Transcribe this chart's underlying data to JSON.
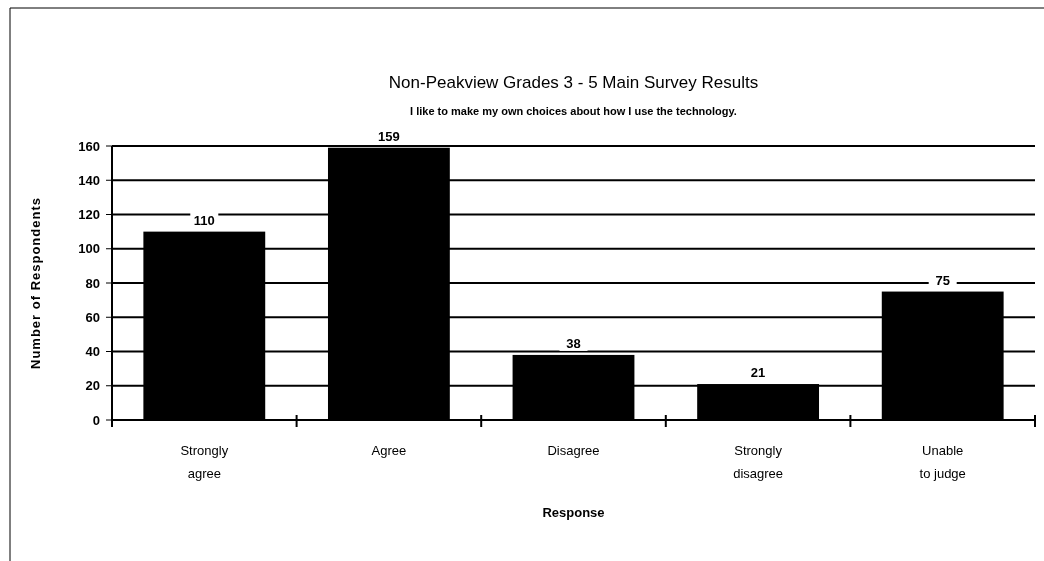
{
  "chart_data": {
    "type": "bar",
    "title": "Non-Peakview Grades 3 - 5 Main Survey Results",
    "subtitle": "I like to make my own choices about how I use the technology.",
    "xlabel": "Response",
    "ylabel": "Number of Respondents",
    "categories": [
      "Strongly\nagree",
      "Agree",
      "Disagree",
      "Strongly\ndisagree",
      "Unable\nto judge"
    ],
    "values": [
      110,
      159,
      38,
      21,
      75
    ],
    "color": "#000000",
    "ylim": [
      0,
      160
    ],
    "yticks": [
      0,
      20,
      40,
      60,
      80,
      100,
      120,
      140,
      160
    ],
    "grid": "y",
    "data_labels": true
  }
}
